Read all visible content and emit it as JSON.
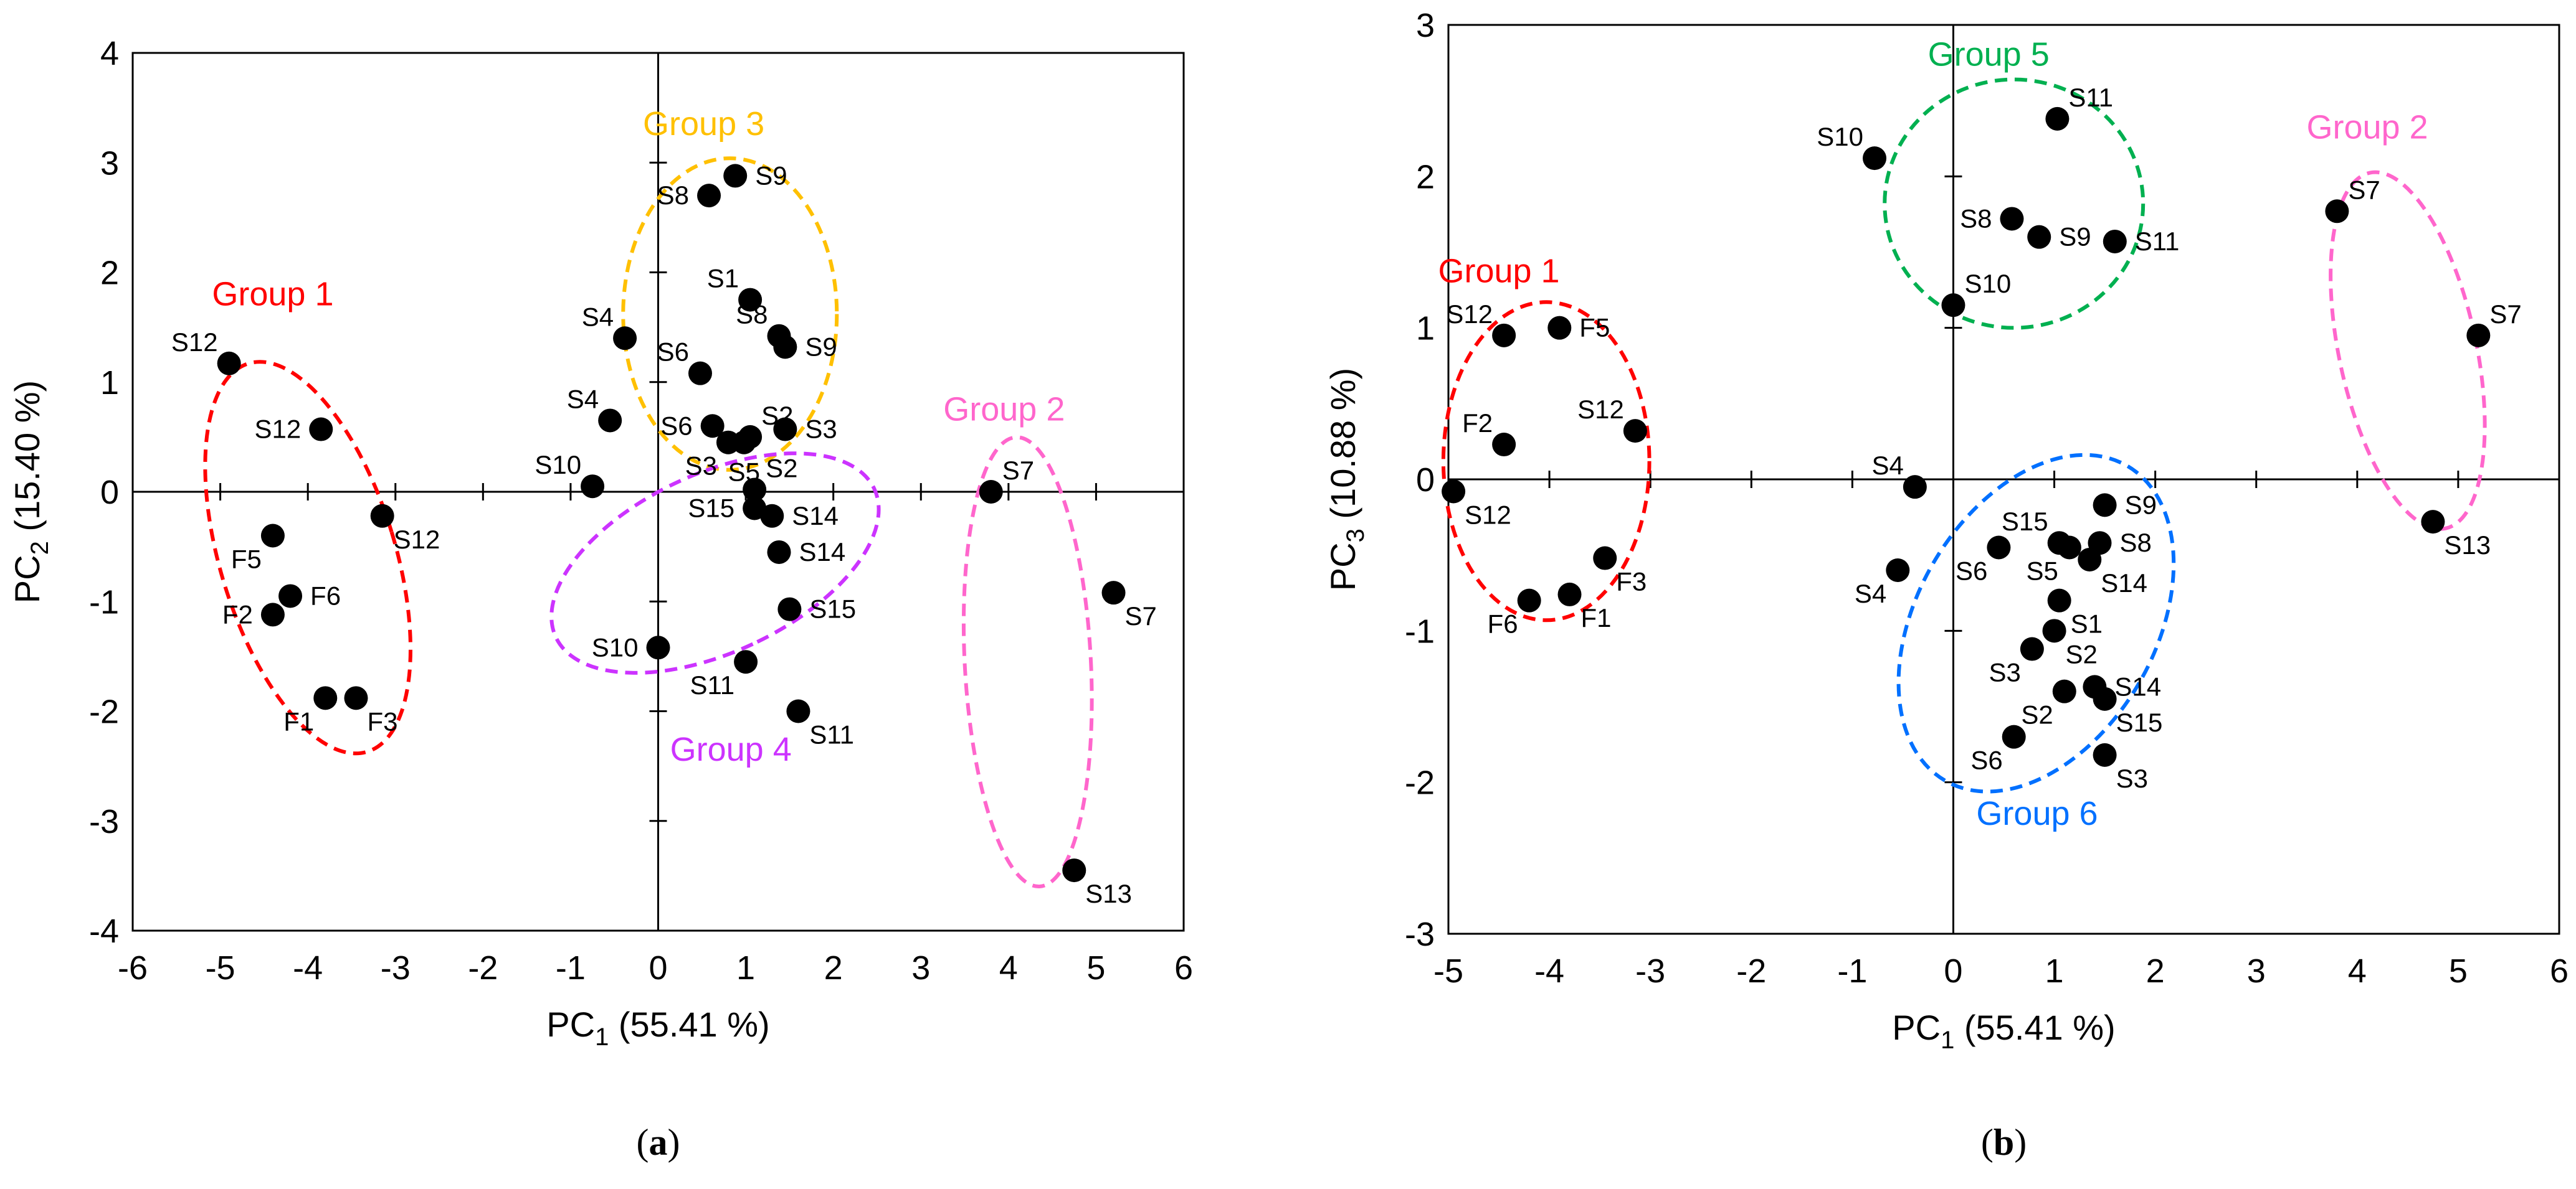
{
  "chart_data": [
    {
      "type": "scatter",
      "panel": "a",
      "caption": {
        "open": "(",
        "letter": "a",
        "close": ")"
      },
      "xlabel": {
        "main": "PC",
        "sub": "1",
        "rest": " (55.41 %)"
      },
      "ylabel": {
        "main": "PC",
        "sub": "2",
        "rest": " (15.40 %)"
      },
      "xlim": [
        -6,
        6
      ],
      "ylim": [
        -4,
        4
      ],
      "xticks": [
        -6,
        -5,
        -4,
        -3,
        -2,
        -1,
        0,
        1,
        2,
        3,
        4,
        5,
        6
      ],
      "yticks": [
        -4,
        -3,
        -2,
        -1,
        0,
        1,
        2,
        3,
        4
      ],
      "points": [
        {
          "label": "S12",
          "x": -4.9,
          "y": 1.17,
          "lpos": "tl"
        },
        {
          "label": "S12",
          "x": -3.85,
          "y": 0.57,
          "lpos": "l"
        },
        {
          "label": "S12",
          "x": -3.15,
          "y": -0.22,
          "lpos": "br"
        },
        {
          "label": "F5",
          "x": -4.4,
          "y": -0.4,
          "lpos": "bl"
        },
        {
          "label": "F6",
          "x": -4.2,
          "y": -0.95,
          "lpos": "r"
        },
        {
          "label": "F2",
          "x": -4.4,
          "y": -1.12,
          "lpos": "l"
        },
        {
          "label": "F1",
          "x": -3.8,
          "y": -1.88,
          "lpos": "bl"
        },
        {
          "label": "F3",
          "x": -3.45,
          "y": -1.88,
          "lpos": "br"
        },
        {
          "label": "S8",
          "x": 0.58,
          "y": 2.7,
          "lpos": "l"
        },
        {
          "label": "S9",
          "x": 0.88,
          "y": 2.88,
          "lpos": "r"
        },
        {
          "label": "S1",
          "x": 1.05,
          "y": 1.75,
          "lpos": "tl"
        },
        {
          "label": "S8",
          "x": 1.38,
          "y": 1.42,
          "lpos": "tl"
        },
        {
          "label": "S9",
          "x": 1.45,
          "y": 1.32,
          "lpos": "r"
        },
        {
          "label": "S4",
          "x": -0.38,
          "y": 1.4,
          "lpos": "tl"
        },
        {
          "label": "S6",
          "x": 0.48,
          "y": 1.08,
          "lpos": "tl"
        },
        {
          "label": "S4",
          "x": -0.55,
          "y": 0.65,
          "lpos": "tl"
        },
        {
          "label": "S6",
          "x": 0.62,
          "y": 0.6,
          "lpos": "l"
        },
        {
          "label": "S2",
          "x": 1.05,
          "y": 0.5,
          "lpos": "tr"
        },
        {
          "label": "S3",
          "x": 1.45,
          "y": 0.57,
          "lpos": "r"
        },
        {
          "label": "S3",
          "x": 0.8,
          "y": 0.45,
          "lpos": "bl"
        },
        {
          "label": "S5",
          "x": 0.98,
          "y": 0.45,
          "lpos": "b"
        },
        {
          "label": "S10",
          "x": -0.75,
          "y": 0.05,
          "lpos": "tl"
        },
        {
          "label": "S2",
          "x": 1.1,
          "y": 0.02,
          "lpos": "tr"
        },
        {
          "label": "S15",
          "x": 1.1,
          "y": -0.15,
          "lpos": "l"
        },
        {
          "label": "S14",
          "x": 1.3,
          "y": -0.22,
          "lpos": "r"
        },
        {
          "label": "S14",
          "x": 1.38,
          "y": -0.55,
          "lpos": "r"
        },
        {
          "label": "S15",
          "x": 1.5,
          "y": -1.07,
          "lpos": "r"
        },
        {
          "label": "S10",
          "x": 0.0,
          "y": -1.42,
          "lpos": "l"
        },
        {
          "label": "S11",
          "x": 1.0,
          "y": -1.55,
          "lpos": "bl"
        },
        {
          "label": "S11",
          "x": 1.6,
          "y": -2.0,
          "lpos": "br"
        },
        {
          "label": "S7",
          "x": 3.8,
          "y": 0.0,
          "lpos": "tr"
        },
        {
          "label": "S7",
          "x": 5.2,
          "y": -0.92,
          "lpos": "br"
        },
        {
          "label": "S13",
          "x": 4.75,
          "y": -3.45,
          "lpos": "br"
        }
      ],
      "groups": [
        {
          "name": "Group 1",
          "color": "#ff0000",
          "cx": -4.0,
          "cy": -0.6,
          "rx": 1.0,
          "ry": 1.85,
          "angle": -17,
          "label_x": -4.4,
          "label_y": 1.7
        },
        {
          "name": "Group 2",
          "color": "#ff66cc",
          "cx": 4.22,
          "cy": -1.55,
          "rx": 0.72,
          "ry": 2.05,
          "angle": -3,
          "label_x": 3.95,
          "label_y": 0.65
        },
        {
          "name": "Group 3",
          "color": "#ffc000",
          "cx": 0.82,
          "cy": 1.62,
          "rx": 1.22,
          "ry": 1.42,
          "angle": 0,
          "label_x": 0.52,
          "label_y": 3.25
        },
        {
          "name": "Group 4",
          "color": "#cc33ff",
          "cx": 0.65,
          "cy": -0.65,
          "rx": 1.02,
          "ry": 1.6,
          "angle": 65,
          "label_x": 0.83,
          "label_y": -2.45
        }
      ]
    },
    {
      "type": "scatter",
      "panel": "b",
      "caption": {
        "open": "(",
        "letter": "b",
        "close": ")"
      },
      "xlabel": {
        "main": "PC",
        "sub": "1",
        "rest": " (55.41 %)"
      },
      "ylabel": {
        "main": "PC",
        "sub": "3",
        "rest": " (10.88 %)"
      },
      "xlim": [
        -5,
        6
      ],
      "ylim": [
        -3,
        3
      ],
      "xticks": [
        -5,
        -4,
        -3,
        -2,
        -1,
        0,
        1,
        2,
        3,
        4,
        5,
        6
      ],
      "yticks": [
        -3,
        -2,
        -1,
        0,
        1,
        2,
        3
      ],
      "points": [
        {
          "label": "S10",
          "x": -0.78,
          "y": 2.12,
          "lpos": "tl"
        },
        {
          "label": "S11",
          "x": 1.03,
          "y": 2.38,
          "lpos": "tr"
        },
        {
          "label": "S8",
          "x": 0.58,
          "y": 1.72,
          "lpos": "l"
        },
        {
          "label": "S9",
          "x": 0.85,
          "y": 1.6,
          "lpos": "r"
        },
        {
          "label": "S11",
          "x": 1.6,
          "y": 1.57,
          "lpos": "r"
        },
        {
          "label": "S10",
          "x": 0.0,
          "y": 1.15,
          "lpos": "tr"
        },
        {
          "label": "S12",
          "x": -4.45,
          "y": 0.95,
          "lpos": "tl"
        },
        {
          "label": "F5",
          "x": -3.9,
          "y": 1.0,
          "lpos": "r"
        },
        {
          "label": "S12",
          "x": -3.15,
          "y": 0.32,
          "lpos": "tl"
        },
        {
          "label": "F2",
          "x": -4.45,
          "y": 0.23,
          "lpos": "tl"
        },
        {
          "label": "S12",
          "x": -4.95,
          "y": -0.08,
          "lpos": "br"
        },
        {
          "label": "F3",
          "x": -3.45,
          "y": -0.52,
          "lpos": "br"
        },
        {
          "label": "F6",
          "x": -4.2,
          "y": -0.8,
          "lpos": "bl"
        },
        {
          "label": "F1",
          "x": -3.8,
          "y": -0.76,
          "lpos": "br"
        },
        {
          "label": "S4",
          "x": -0.38,
          "y": -0.05,
          "lpos": "tl"
        },
        {
          "label": "S4",
          "x": -0.55,
          "y": -0.6,
          "lpos": "bl"
        },
        {
          "label": "S6",
          "x": 0.45,
          "y": -0.45,
          "lpos": "bl"
        },
        {
          "label": "S15",
          "x": 1.05,
          "y": -0.42,
          "lpos": "tl"
        },
        {
          "label": "S9",
          "x": 1.5,
          "y": -0.17,
          "lpos": "r"
        },
        {
          "label": "S8",
          "x": 1.45,
          "y": -0.42,
          "lpos": "r"
        },
        {
          "label": "S5",
          "x": 1.15,
          "y": -0.45,
          "lpos": "bl"
        },
        {
          "label": "S14",
          "x": 1.35,
          "y": -0.53,
          "lpos": "br"
        },
        {
          "label": "S1",
          "x": 1.05,
          "y": -0.8,
          "lpos": "br"
        },
        {
          "label": "S2",
          "x": 1.0,
          "y": -1.0,
          "lpos": "br"
        },
        {
          "label": "S3",
          "x": 0.78,
          "y": -1.12,
          "lpos": "bl"
        },
        {
          "label": "S14",
          "x": 1.4,
          "y": -1.37,
          "lpos": "r"
        },
        {
          "label": "S2",
          "x": 1.1,
          "y": -1.4,
          "lpos": "bl"
        },
        {
          "label": "S15",
          "x": 1.5,
          "y": -1.45,
          "lpos": "br"
        },
        {
          "label": "S6",
          "x": 0.6,
          "y": -1.7,
          "lpos": "bl"
        },
        {
          "label": "S3",
          "x": 1.5,
          "y": -1.82,
          "lpos": "br"
        },
        {
          "label": "S7",
          "x": 3.8,
          "y": 1.77,
          "lpos": "tr"
        },
        {
          "label": "S7",
          "x": 5.2,
          "y": 0.95,
          "lpos": "tr"
        },
        {
          "label": "S13",
          "x": 4.75,
          "y": -0.28,
          "lpos": "br"
        }
      ],
      "groups": [
        {
          "name": "Group 1",
          "color": "#ff0000",
          "cx": -4.03,
          "cy": 0.12,
          "rx": 1.02,
          "ry": 1.05,
          "angle": 0,
          "label_x": -4.5,
          "label_y": 1.3
        },
        {
          "name": "Group 2",
          "color": "#ff66cc",
          "cx": 4.5,
          "cy": 0.85,
          "rx": 0.68,
          "ry": 1.2,
          "angle": -12,
          "label_x": 4.1,
          "label_y": 2.25
        },
        {
          "name": "Group 5",
          "color": "#00b050",
          "cx": 0.6,
          "cy": 1.82,
          "rx": 1.28,
          "ry": 0.82,
          "angle": 0,
          "label_x": 0.35,
          "label_y": 2.73
        },
        {
          "name": "Group 6",
          "color": "#0070ff",
          "cx": 0.82,
          "cy": -0.95,
          "rx": 1.18,
          "ry": 1.2,
          "angle": 30,
          "label_x": 0.83,
          "label_y": -2.28
        }
      ]
    }
  ]
}
